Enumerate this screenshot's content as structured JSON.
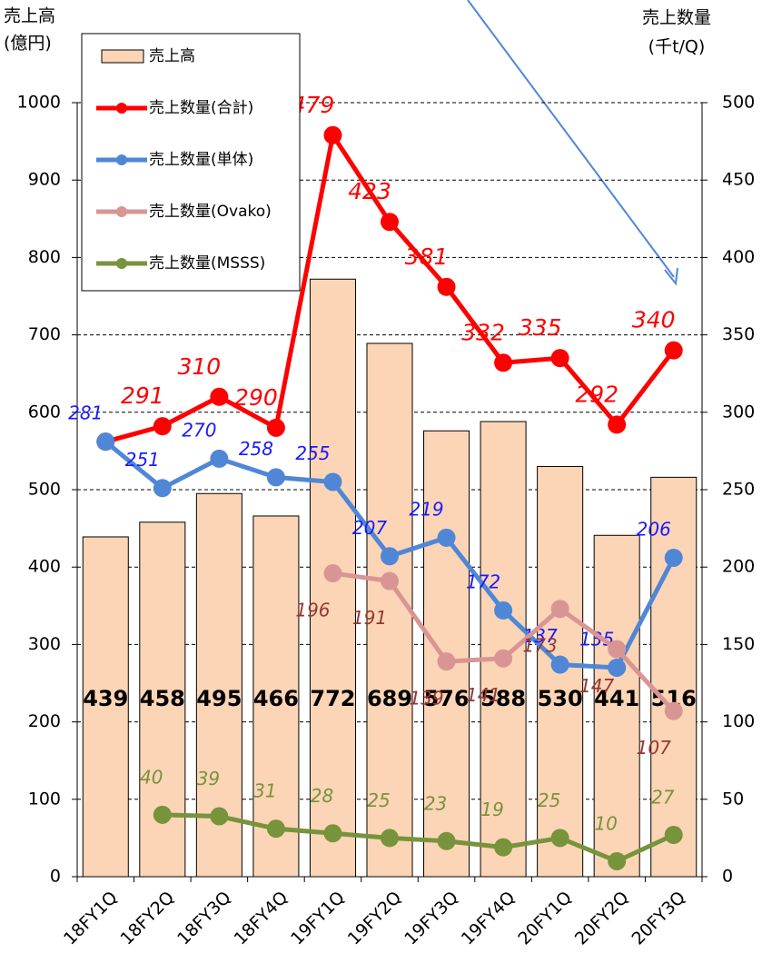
{
  "chart_data": {
    "type": "combo",
    "y_label": [
      "売上高",
      "(億円)"
    ],
    "y2_label": [
      "売上数量",
      "(千t/Q)"
    ],
    "categories": [
      "18FY1Q",
      "18FY2Q",
      "18FY3Q",
      "18FY4Q",
      "19FY1Q",
      "19FY2Q",
      "19FY3Q",
      "19FY4Q",
      "20FY1Q",
      "20FY2Q",
      "20FY3Q"
    ],
    "ylim": [
      0,
      1000
    ],
    "yticks": [
      0,
      100,
      200,
      300,
      400,
      500,
      600,
      700,
      800,
      900,
      1000
    ],
    "y2lim": [
      0,
      500
    ],
    "y2ticks": [
      0,
      50,
      100,
      150,
      200,
      250,
      300,
      350,
      400,
      450,
      500
    ],
    "grid": true,
    "legend": "upper left",
    "series": [
      {
        "name": "売上高",
        "type": "bar",
        "color": "#fbd5b5",
        "label_color": "#000000",
        "values": [
          439,
          458,
          495,
          466,
          772,
          689,
          576,
          588,
          530,
          441,
          516
        ]
      },
      {
        "name": "売上数量(合計)",
        "type": "line",
        "axis": "y2",
        "color": "#ff0000",
        "label_color": "#ff0000",
        "values": [
          281,
          291,
          310,
          290,
          479,
          423,
          381,
          332,
          335,
          292,
          340
        ],
        "value_labels": [
          null,
          "291",
          "310",
          "290",
          "479",
          "423",
          "381",
          "332",
          "335",
          "292",
          "340"
        ]
      },
      {
        "name": "売上数量(単体)",
        "type": "line",
        "axis": "y2",
        "color": "#4f87d6",
        "label_color": "#1a1aff",
        "values": [
          281,
          251,
          270,
          258,
          255,
          207,
          219,
          172,
          137,
          135,
          206
        ]
      },
      {
        "name": "売上数量(Ovako)",
        "type": "line",
        "axis": "y2",
        "color": "#d99594",
        "label_color": "#953735",
        "values": [
          null,
          null,
          null,
          null,
          196,
          191,
          139,
          141,
          173,
          147,
          107
        ]
      },
      {
        "name": "売上数量(MSSS)",
        "type": "line",
        "axis": "y2",
        "color": "#77933c",
        "label_color": "#77933c",
        "values": [
          null,
          40,
          39,
          31,
          28,
          25,
          23,
          19,
          25,
          10,
          27
        ]
      }
    ]
  }
}
